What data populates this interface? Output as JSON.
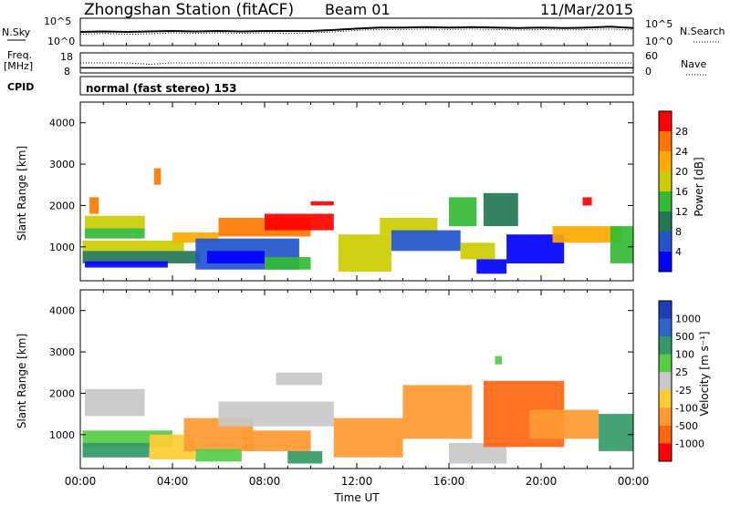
{
  "header": {
    "station": "Zhongshan Station (fitACF)",
    "beam": "Beam 01",
    "date": "11/Mar/2015"
  },
  "chart_data": [
    {
      "type": "line",
      "panel": "noise",
      "left_label": "N.Sky",
      "right_label": "N.Search",
      "left_ticks": [
        "10^5",
        "10^0"
      ],
      "right_ticks": [
        "10^5",
        "10^0"
      ],
      "x_ticks": [
        "00:00",
        "04:00",
        "08:00",
        "12:00",
        "16:00",
        "20:00",
        "00:00"
      ],
      "series": [
        {
          "name": "N.Sky",
          "style": "solid",
          "x": [
            0,
            1,
            2,
            3,
            4,
            5,
            6,
            7,
            8,
            9,
            10,
            11,
            12,
            13,
            14,
            15,
            16,
            17,
            18,
            19,
            20,
            21,
            22,
            23,
            24
          ],
          "y": [
            2.5,
            2.6,
            2.5,
            2.6,
            2.7,
            2.6,
            2.7,
            2.6,
            2.7,
            2.7,
            2.7,
            2.9,
            3.2,
            3.4,
            3.4,
            3.5,
            3.4,
            3.5,
            3.4,
            3.3,
            3.4,
            3.3,
            3.4,
            3.6,
            3.3
          ]
        },
        {
          "name": "N.Search",
          "style": "dotted",
          "x": [
            0,
            1,
            2,
            3,
            4,
            5,
            6,
            7,
            8,
            9,
            10,
            11,
            12,
            13,
            14,
            15,
            16,
            17,
            18,
            19,
            20,
            21,
            22,
            23,
            24
          ],
          "y": [
            2.0,
            2.2,
            2.0,
            2.1,
            2.3,
            2.2,
            2.3,
            2.2,
            2.3,
            2.2,
            2.3,
            2.5,
            2.8,
            3.0,
            3.0,
            3.1,
            3.0,
            3.1,
            3.0,
            2.9,
            3.0,
            2.9,
            3.0,
            3.1,
            2.9
          ]
        }
      ]
    },
    {
      "type": "line",
      "panel": "frequency",
      "left_label_1": "Freq.",
      "left_label_2": "[MHz]",
      "right_label": "Nave",
      "left_ticks": [
        "18",
        "8"
      ],
      "right_ticks": [
        "60",
        "0"
      ],
      "series": [
        {
          "name": "Freq.",
          "style": "solid",
          "x": [
            0,
            24
          ],
          "y": [
            10,
            10
          ]
        },
        {
          "name": "Nave",
          "style": "dotted",
          "x": [
            0,
            2,
            3,
            4,
            5,
            24
          ],
          "y": [
            30,
            30,
            25,
            30,
            30,
            30
          ]
        }
      ]
    },
    {
      "type": "table",
      "panel": "cpid",
      "label": "CPID",
      "value": "normal (fast stereo) 153"
    },
    {
      "type": "heatmap",
      "panel": "power",
      "ylabel": "Slant Range [km]",
      "ylim": [
        180,
        4500
      ],
      "yticks": [
        1000,
        2000,
        3000,
        4000
      ],
      "xlim": [
        0,
        24
      ],
      "colorbar": {
        "label": "Power [dB]",
        "ticks": [
          "28",
          "24",
          "20",
          "16",
          "12",
          "8",
          "4"
        ],
        "colors": [
          "#ff0000",
          "#ff7700",
          "#ffaa00",
          "#cccc00",
          "#33bb33",
          "#227755",
          "#2255cc",
          "#0000ff"
        ]
      },
      "regions": [
        {
          "x0": 0.2,
          "x1": 2.8,
          "y0": 1450,
          "y1": 1750,
          "level": 3
        },
        {
          "x0": 0.2,
          "x1": 2.8,
          "y0": 1200,
          "y1": 1450,
          "level": 4
        },
        {
          "x0": 0.1,
          "x1": 4.5,
          "y0": 900,
          "y1": 1150,
          "level": 3
        },
        {
          "x0": 0.1,
          "x1": 5.2,
          "y0": 600,
          "y1": 900,
          "level": 5
        },
        {
          "x0": 0.2,
          "x1": 3.8,
          "y0": 500,
          "y1": 650,
          "level": 7
        },
        {
          "x0": 4.0,
          "x1": 6.0,
          "y0": 1100,
          "y1": 1350,
          "level": 2
        },
        {
          "x0": 5.0,
          "x1": 9.5,
          "y0": 450,
          "y1": 1200,
          "level": 6
        },
        {
          "x0": 5.5,
          "x1": 8.0,
          "y0": 600,
          "y1": 900,
          "level": 7
        },
        {
          "x0": 6.0,
          "x1": 10.0,
          "y0": 1250,
          "y1": 1700,
          "level": 1
        },
        {
          "x0": 8.0,
          "x1": 11.0,
          "y0": 1400,
          "y1": 1800,
          "level": 0
        },
        {
          "x0": 8.0,
          "x1": 10.0,
          "y0": 450,
          "y1": 750,
          "level": 4
        },
        {
          "x0": 11.2,
          "x1": 13.5,
          "y0": 400,
          "y1": 1300,
          "level": 3
        },
        {
          "x0": 13.0,
          "x1": 15.5,
          "y0": 1300,
          "y1": 1700,
          "level": 3
        },
        {
          "x0": 13.5,
          "x1": 16.5,
          "y0": 900,
          "y1": 1400,
          "level": 6
        },
        {
          "x0": 16.0,
          "x1": 17.2,
          "y0": 1500,
          "y1": 2200,
          "level": 4
        },
        {
          "x0": 16.5,
          "x1": 18.0,
          "y0": 700,
          "y1": 1100,
          "level": 3
        },
        {
          "x0": 17.2,
          "x1": 18.5,
          "y0": 350,
          "y1": 700,
          "level": 7
        },
        {
          "x0": 17.5,
          "x1": 19.0,
          "y0": 1500,
          "y1": 2300,
          "level": 5
        },
        {
          "x0": 18.5,
          "x1": 21.0,
          "y0": 600,
          "y1": 1300,
          "level": 7
        },
        {
          "x0": 20.5,
          "x1": 23.5,
          "y0": 1100,
          "y1": 1500,
          "level": 2
        },
        {
          "x0": 23.0,
          "x1": 24.0,
          "y0": 600,
          "y1": 1500,
          "level": 4
        },
        {
          "x0": 0.4,
          "x1": 0.8,
          "y0": 1800,
          "y1": 2200,
          "level": 1
        },
        {
          "x0": 3.2,
          "x1": 3.5,
          "y0": 2500,
          "y1": 2900,
          "level": 1
        },
        {
          "x0": 10.0,
          "x1": 11.0,
          "y0": 2000,
          "y1": 2100,
          "level": 0
        },
        {
          "x0": 21.8,
          "x1": 22.2,
          "y0": 2000,
          "y1": 2200,
          "level": 0
        }
      ]
    },
    {
      "type": "heatmap",
      "panel": "velocity",
      "ylabel": "Slant Range [km]",
      "xlabel": "Time UT",
      "ylim": [
        180,
        4500
      ],
      "yticks": [
        1000,
        2000,
        3000,
        4000
      ],
      "xlim": [
        0,
        24
      ],
      "x_ticks": [
        "00:00",
        "04:00",
        "08:00",
        "12:00",
        "16:00",
        "20:00",
        "00:00"
      ],
      "colorbar": {
        "label": "Velocity [m s⁻¹]",
        "ticks": [
          "1000",
          "500",
          "100",
          "25",
          "-25",
          "-100",
          "-500",
          "-1000"
        ],
        "colors": [
          "#1a3fb8",
          "#2a66c8",
          "#339966",
          "#55cc44",
          "#c8c8c8",
          "#ffcc33",
          "#ff9933",
          "#ff6611",
          "#ff0000"
        ]
      },
      "regions": [
        {
          "x0": 0.2,
          "x1": 2.8,
          "y0": 1450,
          "y1": 2100,
          "level": 4
        },
        {
          "x0": 0.1,
          "x1": 4.0,
          "y0": 700,
          "y1": 1100,
          "level": 3
        },
        {
          "x0": 0.1,
          "x1": 3.0,
          "y0": 450,
          "y1": 800,
          "level": 2
        },
        {
          "x0": 3.0,
          "x1": 5.0,
          "y0": 400,
          "y1": 1000,
          "level": 5
        },
        {
          "x0": 4.5,
          "x1": 7.5,
          "y0": 600,
          "y1": 1400,
          "level": 6
        },
        {
          "x0": 5.0,
          "x1": 7.0,
          "y0": 350,
          "y1": 650,
          "level": 3
        },
        {
          "x0": 6.0,
          "x1": 11.0,
          "y0": 1200,
          "y1": 1800,
          "level": 4
        },
        {
          "x0": 7.0,
          "x1": 10.0,
          "y0": 600,
          "y1": 1100,
          "level": 6
        },
        {
          "x0": 9.0,
          "x1": 10.5,
          "y0": 300,
          "y1": 600,
          "level": 2
        },
        {
          "x0": 11.0,
          "x1": 14.0,
          "y0": 450,
          "y1": 1400,
          "level": 6
        },
        {
          "x0": 14.0,
          "x1": 17.0,
          "y0": 900,
          "y1": 2200,
          "level": 6
        },
        {
          "x0": 16.0,
          "x1": 18.5,
          "y0": 300,
          "y1": 800,
          "level": 4
        },
        {
          "x0": 17.5,
          "x1": 21.0,
          "y0": 700,
          "y1": 2300,
          "level": 7
        },
        {
          "x0": 19.5,
          "x1": 22.5,
          "y0": 900,
          "y1": 1600,
          "level": 6
        },
        {
          "x0": 22.5,
          "x1": 24.0,
          "y0": 600,
          "y1": 1500,
          "level": 2
        },
        {
          "x0": 8.5,
          "x1": 10.5,
          "y0": 2200,
          "y1": 2500,
          "level": 4
        },
        {
          "x0": 18.0,
          "x1": 18.3,
          "y0": 2700,
          "y1": 2900,
          "level": 3
        }
      ]
    }
  ]
}
